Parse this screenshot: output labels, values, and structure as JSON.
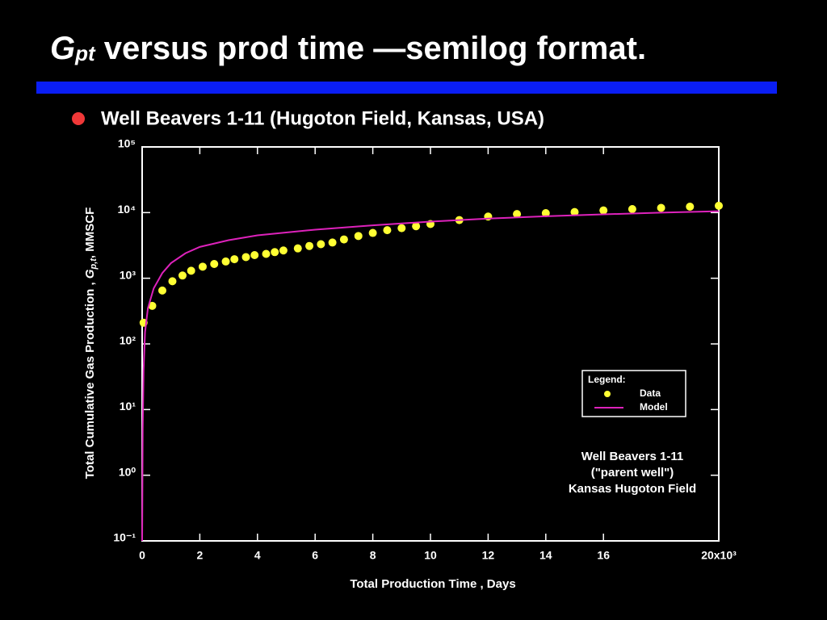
{
  "slide": {
    "title": {
      "symbol": "G",
      "subscript": "pt",
      "text": " versus prod time —semilog format."
    },
    "bullet": "Well Beavers 1-11 (Hugoton Field, Kansas, USA)"
  },
  "chart_data": {
    "type": "line",
    "x_label": "Total Production Time , Days",
    "y_label": {
      "prefix": "Total Cumulative Gas Production , ",
      "symbol": "G",
      "subscript": "p,t",
      "suffix": ", MMSCF"
    },
    "xlim": [
      0,
      20
    ],
    "xticks": [
      0,
      2,
      4,
      6,
      8,
      10,
      12,
      14,
      16,
      {
        "value": 20,
        "label": "20x10³"
      }
    ],
    "ylim": [
      0.1,
      100000
    ],
    "log_y": true,
    "yticks": [
      {
        "value": 0.1,
        "label": "10⁻¹"
      },
      {
        "value": 1,
        "label": "10⁰"
      },
      {
        "value": 10,
        "label": "10¹"
      },
      {
        "value": 100,
        "label": "10²"
      },
      {
        "value": 1000,
        "label": "10³"
      },
      {
        "value": 10000,
        "label": "10⁴"
      },
      {
        "value": 100000,
        "label": "10⁵"
      }
    ],
    "grid": false,
    "legend_title": "Legend:",
    "legend": "lower right",
    "series": [
      {
        "name": "Data",
        "color": "#ffff33",
        "style": "markers",
        "x": [
          0.05,
          0.35,
          0.7,
          1.05,
          1.4,
          1.7,
          2.1,
          2.5,
          2.9,
          3.2,
          3.6,
          3.9,
          4.3,
          4.6,
          4.9,
          5.4,
          5.8,
          6.2,
          6.6,
          7.0,
          7.5,
          8.0,
          8.5,
          9.0,
          9.5,
          10.0,
          11,
          12,
          13,
          14,
          15,
          16,
          17,
          18,
          19,
          20
        ],
        "values": [
          210,
          380,
          650,
          900,
          1100,
          1300,
          1500,
          1650,
          1800,
          1950,
          2100,
          2250,
          2350,
          2500,
          2650,
          2850,
          3100,
          3300,
          3500,
          3900,
          4400,
          4900,
          5400,
          5800,
          6200,
          6700,
          7700,
          8700,
          9500,
          9800,
          10200,
          10800,
          11300,
          11800,
          12300,
          12700
        ]
      },
      {
        "name": "Model",
        "color": "#dd22bb",
        "style": "line",
        "x": [
          0,
          0.02,
          0.05,
          0.1,
          0.2,
          0.4,
          0.7,
          1,
          1.5,
          2,
          3,
          4,
          6,
          8,
          10,
          12,
          14,
          16,
          18,
          20
        ],
        "values": [
          0.1,
          5,
          40,
          150,
          350,
          700,
          1200,
          1700,
          2400,
          3000,
          3800,
          4500,
          5500,
          6400,
          7300,
          8100,
          8800,
          9400,
          10000,
          10500
        ]
      }
    ],
    "annotation": [
      "Well Beavers 1-11",
      "(\"parent well\")",
      "Kansas Hugoton Field"
    ]
  }
}
